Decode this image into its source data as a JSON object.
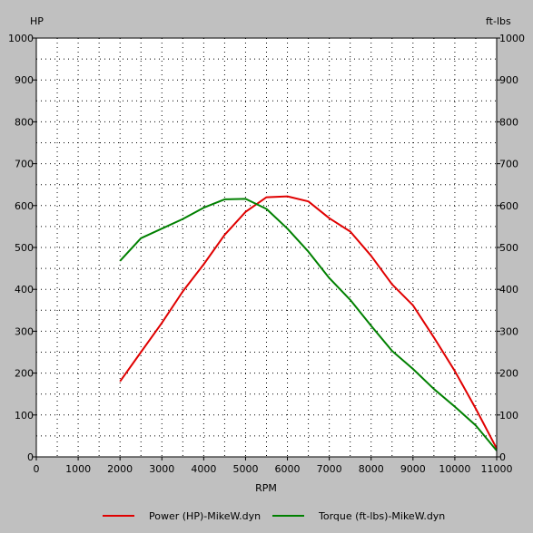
{
  "chart_data": {
    "type": "line",
    "xlabel": "RPM",
    "ylabel_left": "HP",
    "ylabel_right": "ft-lbs",
    "xlim": [
      0,
      11000
    ],
    "ylim": [
      0,
      1000
    ],
    "x_ticks": [
      0,
      1000,
      2000,
      3000,
      4000,
      5000,
      6000,
      7000,
      8000,
      9000,
      10000,
      11000
    ],
    "y_ticks": [
      0,
      100,
      200,
      300,
      400,
      500,
      600,
      700,
      800,
      900,
      1000
    ],
    "grid": true,
    "legend_position": "bottom",
    "series": [
      {
        "name": "Power (HP)-MikeW.dyn",
        "color": "#e00000",
        "x": [
          2000,
          2500,
          3000,
          3500,
          4000,
          4500,
          5000,
          5500,
          6000,
          6500,
          7000,
          7500,
          8000,
          8500,
          9000,
          9500,
          10000,
          10500,
          11000
        ],
        "values": [
          180,
          250,
          320,
          395,
          460,
          530,
          585,
          620,
          622,
          610,
          570,
          538,
          480,
          412,
          362,
          285,
          205,
          115,
          20
        ]
      },
      {
        "name": "Torque (ft-lbs)-MikeW.dyn",
        "color": "#008000",
        "x": [
          2000,
          2500,
          3000,
          3500,
          4000,
          4500,
          5000,
          5500,
          6000,
          6500,
          7000,
          7500,
          8000,
          8500,
          9000,
          9500,
          10000,
          10500,
          11000
        ],
        "values": [
          468,
          522,
          545,
          568,
          595,
          615,
          616,
          592,
          545,
          490,
          427,
          375,
          313,
          253,
          210,
          162,
          120,
          75,
          15
        ]
      }
    ]
  }
}
